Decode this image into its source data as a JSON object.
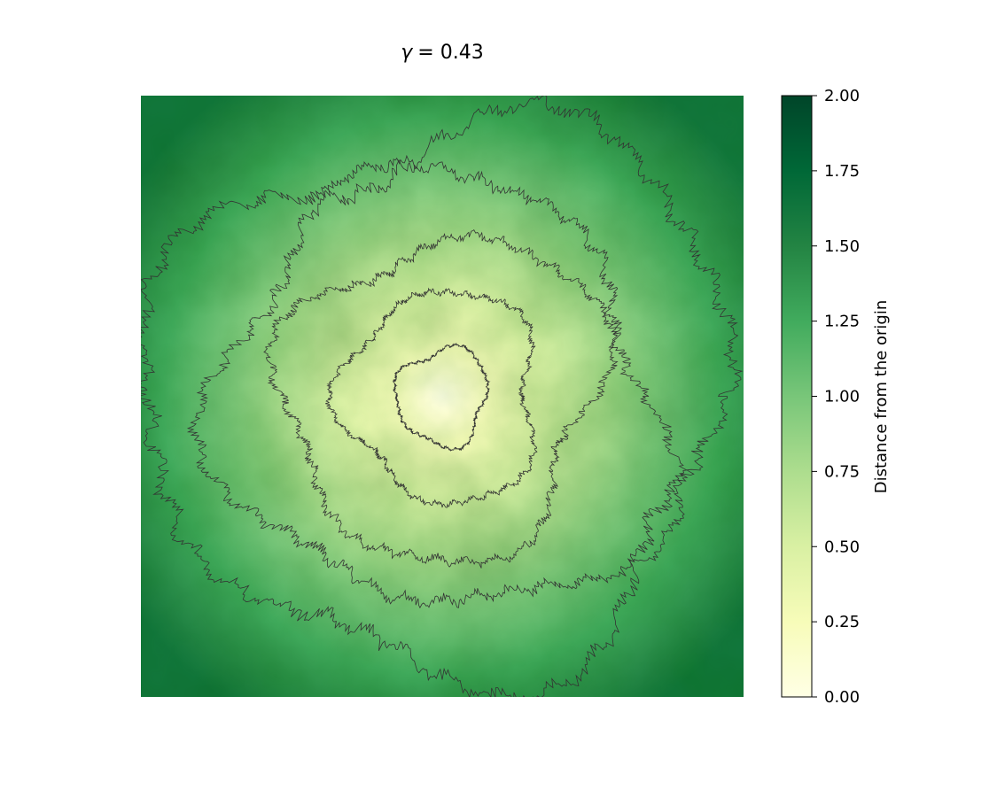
{
  "chart_data": {
    "type": "heatmap",
    "title_symbol": "γ",
    "title_value": "= 0.43",
    "colormap": "YlGn",
    "colormap_stops": [
      "#ffffe5",
      "#f7fcb9",
      "#d9f0a3",
      "#addd8e",
      "#78c679",
      "#41ab5d",
      "#238443",
      "#006837",
      "#004529"
    ],
    "colorbar": {
      "label": "Distance from the origin",
      "range": [
        0,
        2
      ],
      "ticks": [
        0.0,
        0.25,
        0.5,
        0.75,
        1.0,
        1.25,
        1.5,
        1.75,
        2.0
      ],
      "tick_labels": [
        "0.00",
        "0.25",
        "0.50",
        "0.75",
        "1.00",
        "1.25",
        "1.50",
        "1.75",
        "2.00"
      ]
    },
    "field_center_value": 0.0,
    "field_edge_value": 1.5,
    "contour_levels": [
      0.25,
      0.5,
      0.75,
      1.0,
      1.25
    ],
    "contour_color": "#333333",
    "axes_visible": false,
    "grid": false
  }
}
